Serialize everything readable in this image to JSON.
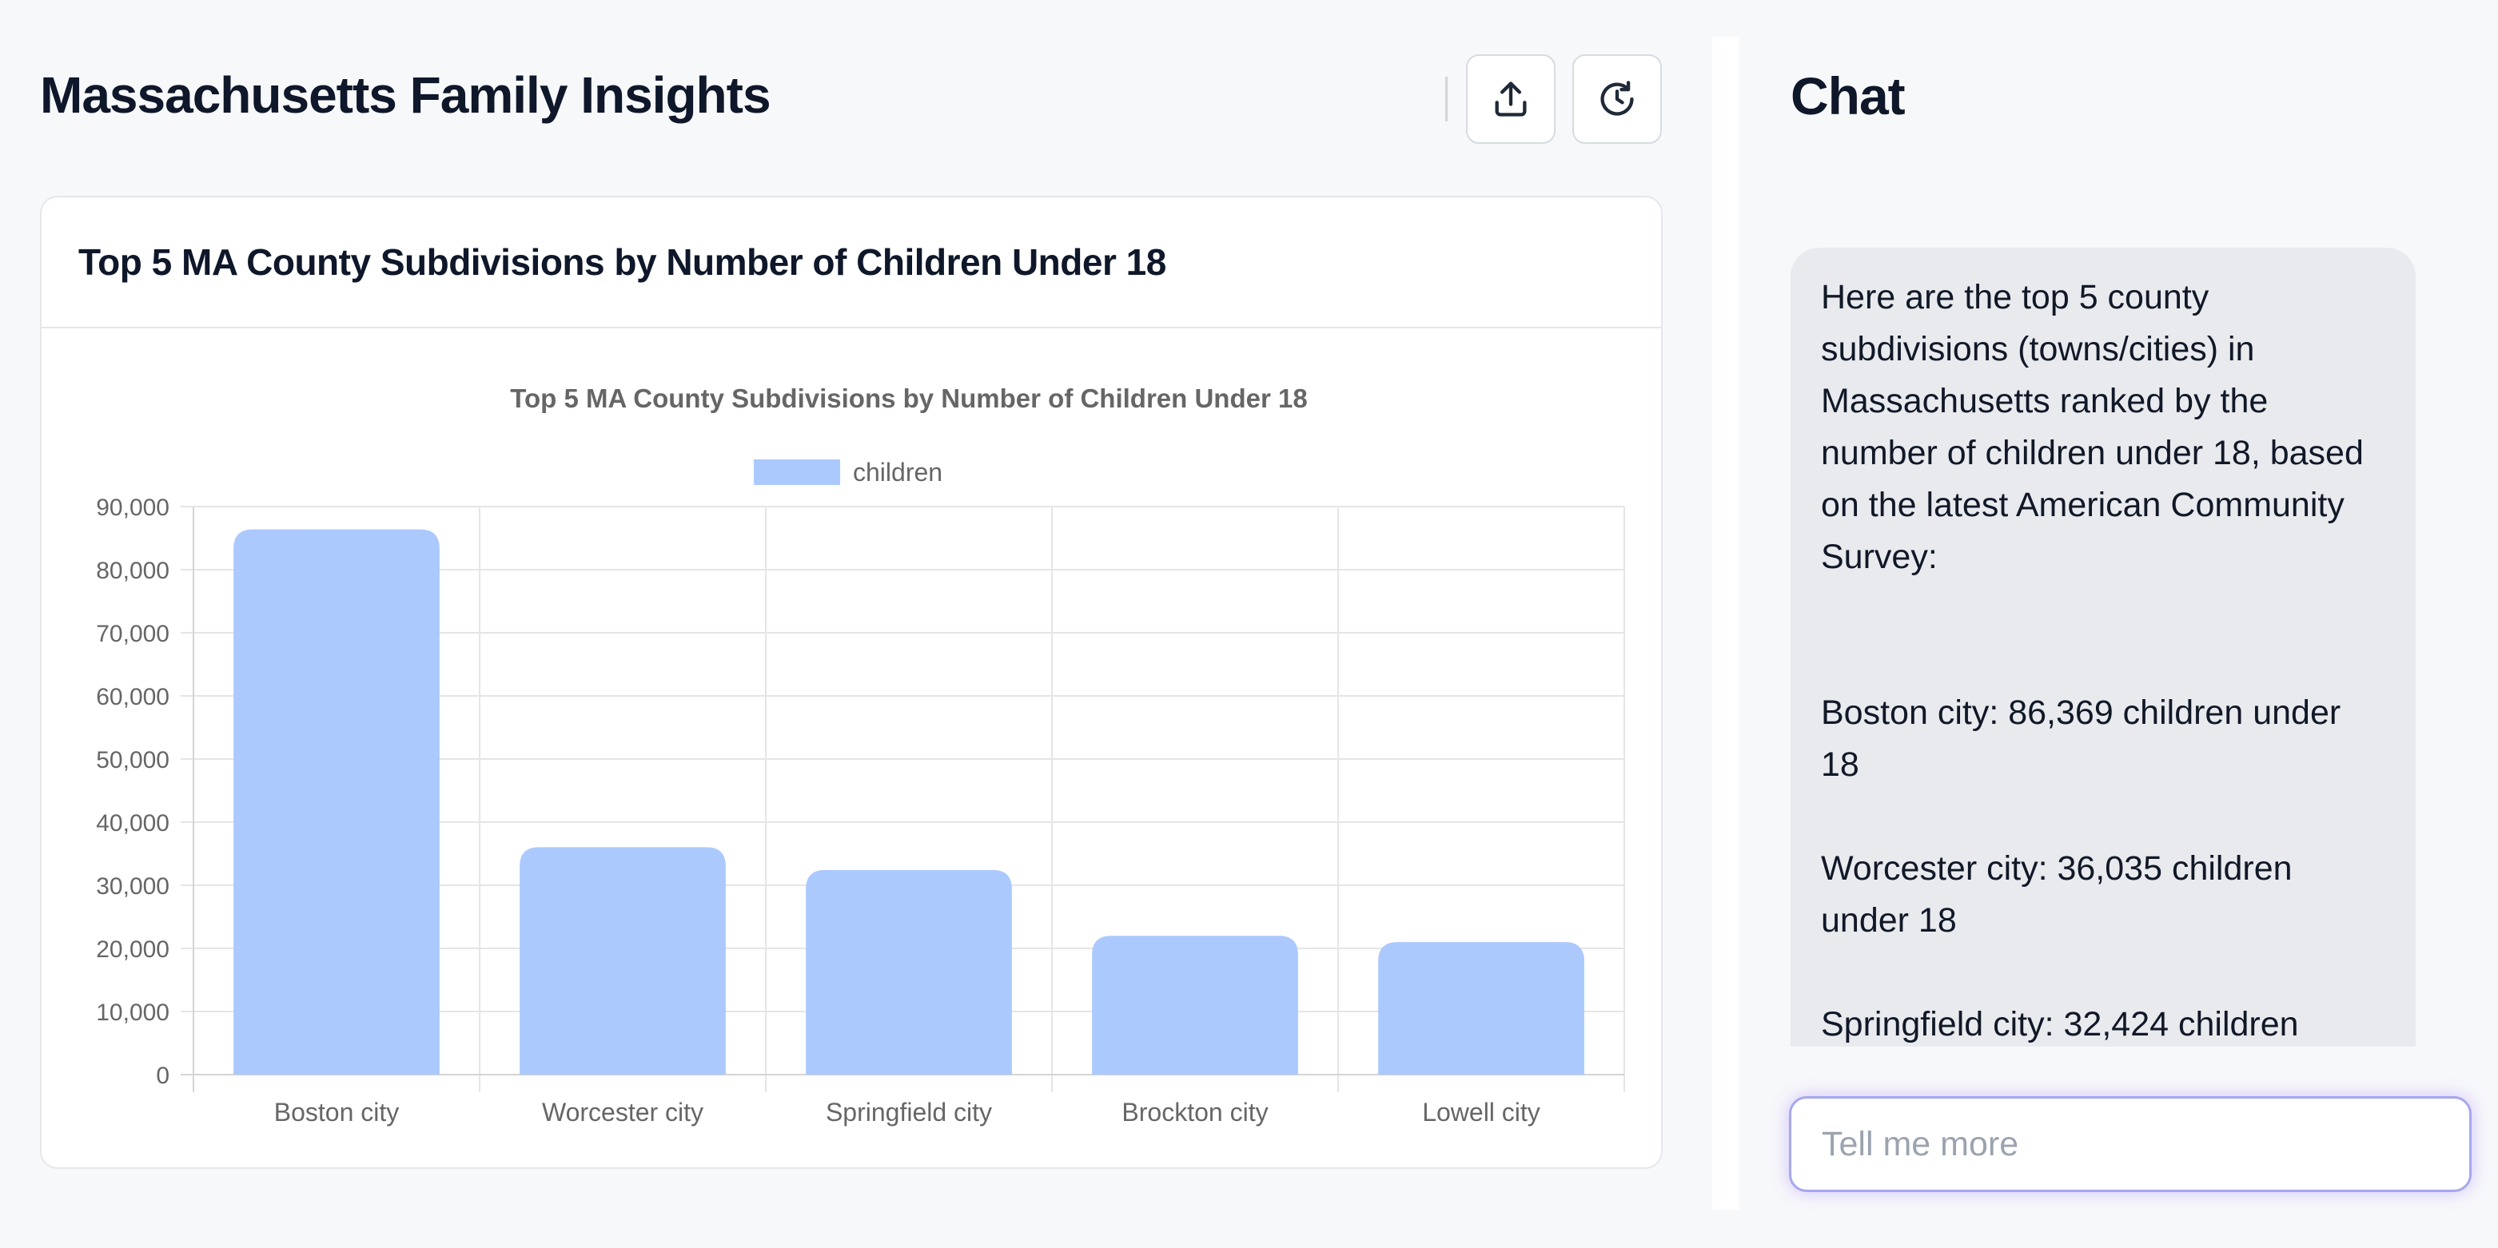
{
  "header": {
    "title": "Massachusetts Family Insights",
    "share_icon": "upload-icon",
    "history_icon": "history-icon"
  },
  "card": {
    "title": "Top 5 MA County Subdivisions by Number of Children Under 18"
  },
  "chart_data": {
    "type": "bar",
    "title": "Top 5 MA County Subdivisions by Number of Children Under 18",
    "categories": [
      "Boston city",
      "Worcester city",
      "Springfield city",
      "Brockton city",
      "Lowell city"
    ],
    "series": [
      {
        "name": "children",
        "values": [
          86369,
          36035,
          32424,
          22000,
          21000
        ],
        "color": "#abc9fd"
      }
    ],
    "ylim": [
      0,
      90000
    ],
    "yticks": [
      0,
      10000,
      20000,
      30000,
      40000,
      50000,
      60000,
      70000,
      80000,
      90000
    ],
    "ytick_labels": [
      "0",
      "10,000",
      "20,000",
      "30,000",
      "40,000",
      "50,000",
      "60,000",
      "70,000",
      "80,000",
      "90,000"
    ],
    "legend": "top-center",
    "grid": true,
    "xlabel": "",
    "ylabel": ""
  },
  "chat": {
    "title": "Chat",
    "messages": [
      "Here are the top 5 county subdivisions (towns/cities) in Massachusetts ranked by the number of children under 18, based on the latest American Community Survey:",
      "Boston city: 86,369 children under 18",
      "Worcester city: 36,035 children under 18",
      "Springfield city: 32,424 children"
    ],
    "input_placeholder": "Tell me more"
  }
}
